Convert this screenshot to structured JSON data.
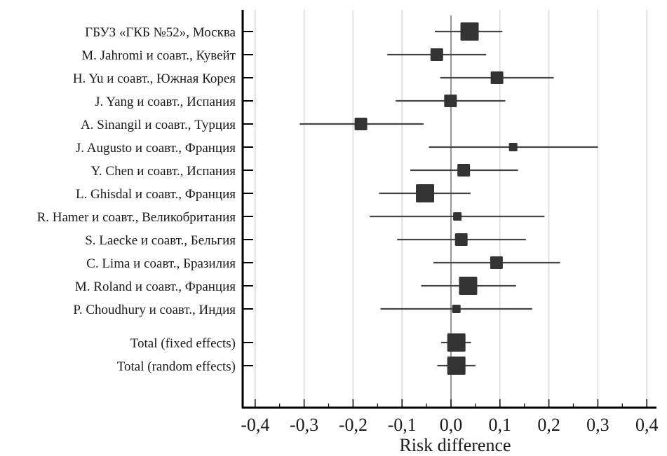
{
  "chart_data": {
    "type": "forest",
    "title": "",
    "xlabel": "Risk difference",
    "ylabel": "",
    "xlim": [
      -0.42,
      0.42
    ],
    "xticks": [
      -0.4,
      -0.3,
      -0.2,
      -0.1,
      0.0,
      0.1,
      0.2,
      0.3,
      0.4
    ],
    "xtick_labels": [
      "-0,4",
      "-0,3",
      "-0,2",
      "-0,1",
      "0,0",
      "0,1",
      "0,2",
      "0,3",
      "0,4"
    ],
    "minor_xticks": [
      -0.35,
      -0.25,
      -0.15,
      -0.05,
      0.05,
      0.15,
      0.25,
      0.35
    ],
    "grid": true,
    "reference_line": 0.0,
    "colors": {
      "marker": "#333333",
      "ci_line": "#444444",
      "grid": "#d9d9d9",
      "axis": "#000000"
    },
    "studies": [
      {
        "label": "ГБУЗ «ГКБ №52», Москва",
        "estimate": 0.038,
        "ci_low": -0.033,
        "ci_high": 0.105,
        "weight": "large"
      },
      {
        "label": "M. Jahromi и соавт., Кувейт",
        "estimate": -0.029,
        "ci_low": -0.13,
        "ci_high": 0.072,
        "weight": "medium"
      },
      {
        "label": "H. Yu и соавт., Южная Корея",
        "estimate": 0.094,
        "ci_low": -0.022,
        "ci_high": 0.21,
        "weight": "medium"
      },
      {
        "label": "J. Yang и соавт., Испания",
        "estimate": -0.001,
        "ci_low": -0.113,
        "ci_high": 0.111,
        "weight": "medium"
      },
      {
        "label": "A. Sinangil и соавт., Турция",
        "estimate": -0.184,
        "ci_low": -0.309,
        "ci_high": -0.056,
        "weight": "medium"
      },
      {
        "label": "J. Augusto и соавт., Франция",
        "estimate": 0.127,
        "ci_low": -0.045,
        "ci_high": 0.3,
        "weight": "small"
      },
      {
        "label": "Y. Chen и соавт., Испания",
        "estimate": 0.026,
        "ci_low": -0.083,
        "ci_high": 0.137,
        "weight": "medium"
      },
      {
        "label": "L. Ghisdal и соавт., Франция",
        "estimate": -0.053,
        "ci_low": -0.147,
        "ci_high": 0.04,
        "weight": "large"
      },
      {
        "label": "R. Hamer и соавт., Великобритания",
        "estimate": 0.013,
        "ci_low": -0.166,
        "ci_high": 0.191,
        "weight": "small"
      },
      {
        "label": "S. Laecke и соавт., Бельгия",
        "estimate": 0.021,
        "ci_low": -0.11,
        "ci_high": 0.153,
        "weight": "medium"
      },
      {
        "label": "C. Lima и соавт., Бразилия",
        "estimate": 0.093,
        "ci_low": -0.036,
        "ci_high": 0.223,
        "weight": "medium"
      },
      {
        "label": "M. Roland и соавт., Франция",
        "estimate": 0.035,
        "ci_low": -0.061,
        "ci_high": 0.133,
        "weight": "large"
      },
      {
        "label": "P. Choudhury и соавт., Индия",
        "estimate": 0.011,
        "ci_low": -0.144,
        "ci_high": 0.166,
        "weight": "small"
      }
    ],
    "totals": [
      {
        "label": "Total (fixed effects)",
        "estimate": 0.011,
        "ci_low": -0.02,
        "ci_high": 0.041,
        "weight": "large"
      },
      {
        "label": "Total (random effects)",
        "estimate": 0.011,
        "ci_low": -0.028,
        "ci_high": 0.05,
        "weight": "large"
      }
    ]
  }
}
